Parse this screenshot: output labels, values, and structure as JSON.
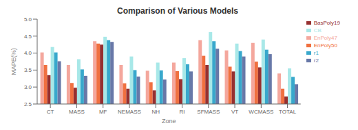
{
  "chart_data": {
    "type": "bar",
    "title": "Comparison of Various Models",
    "xlabel": "Zone",
    "ylabel": "MAPE(%)",
    "categories": [
      "CT",
      "MASS",
      "MF",
      "NEMASS",
      "NH",
      "RI",
      "SFMASS",
      "VT",
      "WCMASS",
      "TOTAL"
    ],
    "series": [
      {
        "name": "EnPoly47",
        "color": "#F4A79D",
        "values": [
          4.02,
          3.65,
          4.35,
          3.65,
          3.48,
          3.72,
          4.38,
          4.08,
          4.3,
          3.4
        ]
      },
      {
        "name": "EnPoly50",
        "color": "#F07040",
        "values": [
          3.65,
          3.12,
          4.28,
          3.11,
          3.14,
          3.47,
          3.92,
          3.6,
          3.75,
          2.95
        ]
      },
      {
        "name": "BasPoly19",
        "color": "#963030",
        "values": [
          3.35,
          2.98,
          4.25,
          2.95,
          2.9,
          3.23,
          3.65,
          3.46,
          3.58,
          2.72
        ]
      },
      {
        "name": "CB",
        "color": "#A8E8E8",
        "values": [
          4.18,
          3.82,
          4.48,
          3.9,
          3.72,
          3.85,
          4.62,
          4.28,
          4.4,
          3.55
        ]
      },
      {
        "name": "r1",
        "color": "#38A8CC",
        "values": [
          4.02,
          3.52,
          4.38,
          3.5,
          3.49,
          3.67,
          4.35,
          4.06,
          4.1,
          3.3
        ]
      },
      {
        "name": "r2",
        "color": "#6878A8",
        "values": [
          3.76,
          3.33,
          4.33,
          3.31,
          3.22,
          3.46,
          4.13,
          3.9,
          3.97,
          3.08
        ]
      }
    ],
    "ylim": [
      2.5,
      5.0
    ],
    "yticks": [
      2.5,
      {
        "value": 3.0,
        "label": "3.0"
      },
      3.5,
      {
        "value": 4.0,
        "label": "4.0"
      },
      4.5,
      {
        "value": 5.0,
        "label": "5.0"
      }
    ],
    "grid": false,
    "legend": "upper right"
  }
}
